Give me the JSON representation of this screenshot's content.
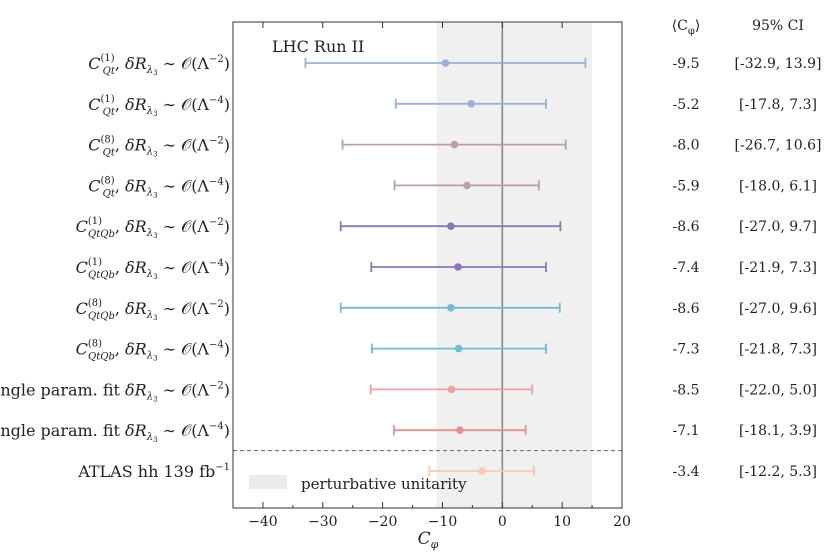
{
  "chart_data": {
    "type": "errorbar",
    "title": "",
    "annotation": "LHC Run II",
    "xlabel": "C_φ",
    "xlim": [
      -45,
      20
    ],
    "x_ticks": [
      -40,
      -30,
      -20,
      -10,
      0,
      10,
      20
    ],
    "grid": false,
    "band": {
      "label": "perturbative unitarity",
      "range": [
        -11,
        15
      ],
      "color": "#e6e6e6"
    },
    "reference_line_x": 0,
    "columns": {
      "mean_header": "⟨C_φ⟩",
      "ci_header": "95% CI"
    },
    "rows": [
      {
        "label": {
          "op": "C",
          "sub": "Qt",
          "sup": "(1)",
          "order": "−2"
        },
        "mean": -9.5,
        "ci": [
          -32.9,
          13.9
        ],
        "mean_text": "-9.5",
        "ci_text": "[-32.9, 13.9]",
        "color": "#9aafd9"
      },
      {
        "label": {
          "op": "C",
          "sub": "Qt",
          "sup": "(1)",
          "order": "−4"
        },
        "mean": -5.2,
        "ci": [
          -17.8,
          7.3
        ],
        "mean_text": "-5.2",
        "ci_text": "[-17.8, 7.3]",
        "color": "#9aafd9"
      },
      {
        "label": {
          "op": "C",
          "sub": "Qt",
          "sup": "(8)",
          "order": "−2"
        },
        "mean": -8.0,
        "ci": [
          -26.7,
          10.6
        ],
        "mean_text": "-8.0",
        "ci_text": "[-26.7, 10.6]",
        "color": "#bc9ea8"
      },
      {
        "label": {
          "op": "C",
          "sub": "Qt",
          "sup": "(8)",
          "order": "−4"
        },
        "mean": -5.9,
        "ci": [
          -18.0,
          6.1
        ],
        "mean_text": "-5.9",
        "ci_text": "[-18.0, 6.1]",
        "color": "#bc9ea8"
      },
      {
        "label": {
          "op": "C",
          "sub": "QtQb",
          "sup": "(1)",
          "order": "−2"
        },
        "mean": -8.6,
        "ci": [
          -27.0,
          9.7
        ],
        "mean_text": "-8.6",
        "ci_text": "[-27.0, 9.7]",
        "color": "#8c78b8"
      },
      {
        "label": {
          "op": "C",
          "sub": "QtQb",
          "sup": "(1)",
          "order": "−4"
        },
        "mean": -7.4,
        "ci": [
          -21.9,
          7.3
        ],
        "mean_text": "-7.4",
        "ci_text": "[-21.9, 7.3]",
        "color": "#8c78b8"
      },
      {
        "label": {
          "op": "C",
          "sub": "QtQb",
          "sup": "(8)",
          "order": "−2"
        },
        "mean": -8.6,
        "ci": [
          -27.0,
          9.6
        ],
        "mean_text": "-8.6",
        "ci_text": "[-27.0, 9.6]",
        "color": "#6fbcd3"
      },
      {
        "label": {
          "op": "C",
          "sub": "QtQb",
          "sup": "(8)",
          "order": "−4"
        },
        "mean": -7.3,
        "ci": [
          -21.8,
          7.3
        ],
        "mean_text": "-7.3",
        "ci_text": "[-21.8, 7.3]",
        "color": "#6fbcd3"
      },
      {
        "label": {
          "op": "single param. fit",
          "sub": "",
          "sup": "",
          "order": "−2"
        },
        "mean": -8.5,
        "ci": [
          -22.0,
          5.0
        ],
        "mean_text": "-8.5",
        "ci_text": "[-22.0, 5.0]",
        "color": "#eda0a0"
      },
      {
        "label": {
          "op": "single param. fit",
          "sub": "",
          "sup": "",
          "order": "−4"
        },
        "mean": -7.1,
        "ci": [
          -18.1,
          3.9
        ],
        "mean_text": "-7.1",
        "ci_text": "[-18.1, 3.9]",
        "color": "#eb8e8e"
      },
      {
        "label": {
          "op": "ATLAS hh 139 fb",
          "sub": "",
          "sup": "−1",
          "order": ""
        },
        "mean": -3.4,
        "ci": [
          -12.2,
          5.3
        ],
        "mean_text": "-3.4",
        "ci_text": "[-12.2, 5.3]",
        "color": "#fbc8b0"
      }
    ],
    "label_tokens": {
      "delta_r": "δR",
      "lambda_sub": "λ",
      "lambda_sub_sub": "3",
      "sim": "∼",
      "big_o": "𝒪",
      "big_lambda": "Λ"
    }
  }
}
